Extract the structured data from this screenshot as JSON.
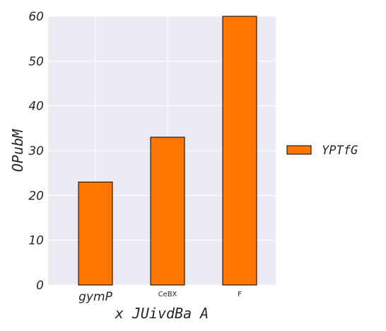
{
  "chart_data": {
    "type": "bar",
    "title": "",
    "xlabel": "x JUivdBa A",
    "ylabel": "OPubM",
    "categories": [
      "gymP",
      "CeBX",
      "F"
    ],
    "category_label_styles": [
      "large-italic",
      "small",
      "small"
    ],
    "series": [
      {
        "name": "YPTfG",
        "values": [
          23,
          33,
          60
        ],
        "color": "#ff7700"
      }
    ],
    "ylim": [
      0,
      60
    ],
    "yticks": [
      0,
      10,
      20,
      30,
      40,
      50,
      60
    ],
    "grid": true,
    "legend_position": "right-outside",
    "plot_background": "#eaeaf2",
    "grid_color": "#ffffff",
    "bar_edge_color": "#000000"
  }
}
